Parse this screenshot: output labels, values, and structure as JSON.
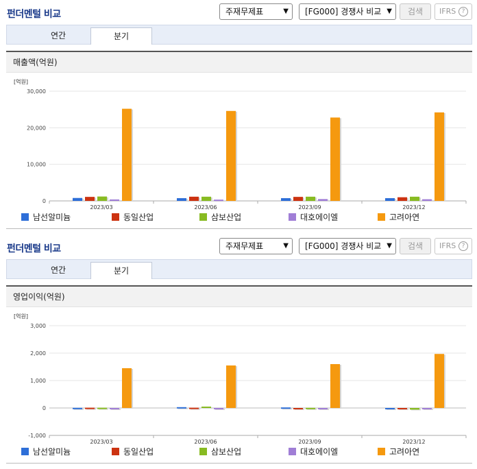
{
  "sections": [
    {
      "title": "펀더멘털 비교",
      "select1": "주재무제표",
      "select2": "[FG000] 경쟁사 비교",
      "search_btn": "검색",
      "ifrs_btn": "IFRS",
      "help_icon": "?",
      "tabs": [
        "연간",
        "분기"
      ],
      "chart_title": "매출액(억원)"
    },
    {
      "title": "펀더멘털 비교",
      "select1": "주재무제표",
      "select2": "[FG000] 경쟁사 비교",
      "search_btn": "검색",
      "ifrs_btn": "IFRS",
      "help_icon": "?",
      "tabs": [
        "연간",
        "분기"
      ],
      "chart_title": "영업이익(억원)"
    }
  ],
  "legend": [
    {
      "name": "남선알미늄",
      "color": "#2e6fd8"
    },
    {
      "name": "동일산업",
      "color": "#cc3311"
    },
    {
      "name": "삼보산업",
      "color": "#88bb22"
    },
    {
      "name": "대호에이엘",
      "color": "#a07ed6"
    },
    {
      "name": "고려아연",
      "color": "#f5990f"
    }
  ],
  "chart_data": [
    {
      "type": "bar",
      "title": "매출액(억원)",
      "unit_label": "[억원]",
      "categories": [
        "2023/03",
        "2023/06",
        "2023/09",
        "2023/12"
      ],
      "yticks": [
        "0",
        "10,000",
        "20,000",
        "30,000"
      ],
      "yticks_values": [
        0,
        10000,
        20000,
        30000
      ],
      "ylim": [
        0,
        30000
      ],
      "series": [
        {
          "name": "남선알미늄",
          "values": [
            800,
            750,
            750,
            750
          ]
        },
        {
          "name": "동일산업",
          "values": [
            1100,
            1150,
            1100,
            1000
          ]
        },
        {
          "name": "삼보산업",
          "values": [
            1200,
            1150,
            1150,
            1150
          ]
        },
        {
          "name": "대호에이엘",
          "values": [
            400,
            350,
            500,
            450
          ]
        },
        {
          "name": "고려아연",
          "values": [
            25200,
            24600,
            22800,
            24200
          ]
        }
      ]
    },
    {
      "type": "bar",
      "title": "영업이익(억원)",
      "unit_label": "[억원]",
      "categories": [
        "2023/03",
        "2023/06",
        "2023/09",
        "2023/12"
      ],
      "yticks": [
        "-1,000",
        "0",
        "1,000",
        "2,000",
        "3,000"
      ],
      "yticks_values": [
        -1000,
        0,
        1000,
        2000,
        3000
      ],
      "ylim": [
        -1000,
        3000
      ],
      "series": [
        {
          "name": "남선알미늄",
          "values": [
            5,
            30,
            20,
            0
          ]
        },
        {
          "name": "동일산업",
          "values": [
            10,
            10,
            -50,
            0
          ]
        },
        {
          "name": "삼보산업",
          "values": [
            10,
            50,
            5,
            -60
          ]
        },
        {
          "name": "대호에이엘",
          "values": [
            -25,
            0,
            -25,
            0
          ]
        },
        {
          "name": "고려아연",
          "values": [
            1450,
            1550,
            1600,
            1970
          ]
        }
      ]
    }
  ]
}
